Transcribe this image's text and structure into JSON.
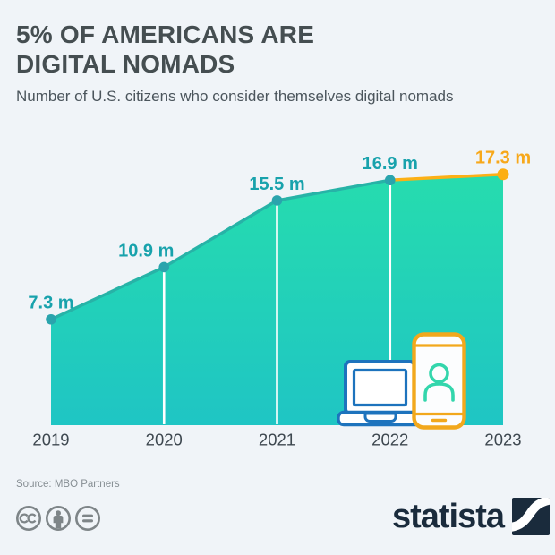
{
  "header": {
    "title_lines": [
      "5% OF AMERICANS ARE",
      "DIGITAL NOMADS"
    ],
    "subtitle": "Number of U.S. citizens who consider themselves digital nomads"
  },
  "chart_data": {
    "type": "area",
    "title": "5% OF AMERICANS ARE DIGITAL NOMADS",
    "xlabel": "",
    "ylabel": "",
    "x": [
      "2019",
      "2020",
      "2021",
      "2022",
      "2023"
    ],
    "values": [
      7.3,
      10.9,
      15.5,
      16.9,
      17.3
    ],
    "labels": [
      "7.3 m",
      "10.9 m",
      "15.5 m",
      "16.9 m",
      "17.3 m"
    ],
    "ylim": [
      0,
      20
    ],
    "grid": false,
    "legend_position": "none",
    "highlight": {
      "segment": "2022-2023"
    },
    "label_dx": [
      0,
      -20,
      0,
      0,
      0
    ],
    "colors": {
      "area_top": "#26dcae",
      "area_bottom": "#1fc5c4",
      "line": "#27b3a7",
      "point": "#2aa4ad",
      "label": "#18a2ac",
      "highlight_line": "#fcb016",
      "highlight_point": "#fcae13",
      "highlight_label": "#f7a81b",
      "marker_line": "#ffffff",
      "laptop_blue": "#1d73bd",
      "phone_orange": "#f2a81c",
      "person_teal": "#33d6ac"
    }
  },
  "icons": {
    "devices": [
      "laptop-icon",
      "smartphone-user-icon"
    ],
    "license": [
      "cc-icon",
      "attribution-icon",
      "no-derivatives-icon"
    ],
    "brand_mark": "statista-logo-mark"
  },
  "footer": {
    "source": "Source: MBO Partners",
    "brand": "statista"
  }
}
